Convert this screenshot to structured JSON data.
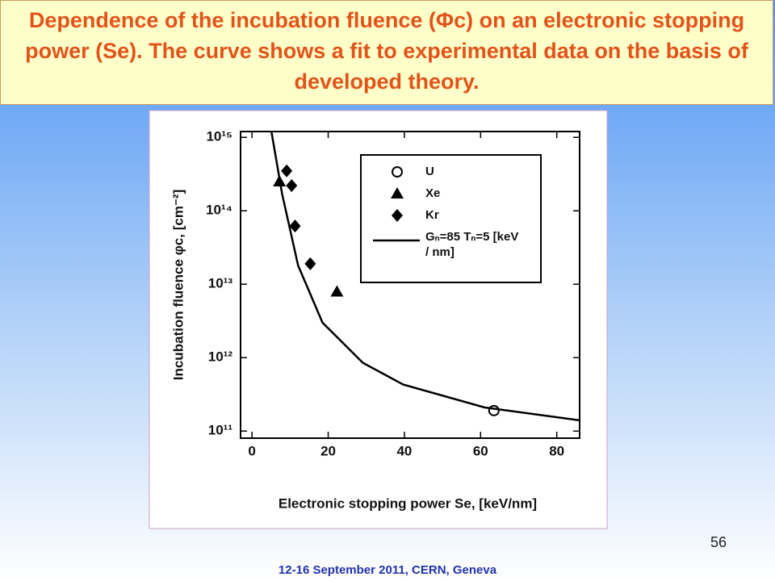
{
  "slide": {
    "title": "Dependence of the incubation fluence (Φc) on an electronic stopping power (Se). The curve shows a fit to experimental data on the basis of developed theory.",
    "page_number": "56",
    "footer": "12-16  September 2011, CERN, Geneva"
  },
  "chart_data": {
    "type": "scatter",
    "x_label": "Electronic stopping power  Se, [keV/nm]",
    "y_label": "Incubation fluence  φc, [cm⁻²]",
    "xlim": [
      -3,
      86
    ],
    "xticks": [
      0,
      20,
      40,
      60,
      80
    ],
    "yscale": "log",
    "ylim": [
      80000000000,
      1200000000000000
    ],
    "yticks": [
      {
        "value": 100000000000,
        "label": "10¹¹"
      },
      {
        "value": 1000000000000,
        "label": "10¹²"
      },
      {
        "value": 10000000000000,
        "label": "10¹³"
      },
      {
        "value": 100000000000000,
        "label": "10¹⁴"
      },
      {
        "value": 1000000000000000,
        "label": "10¹⁵"
      }
    ],
    "legend": "upper right",
    "series": [
      {
        "name": "U",
        "color": "#000000",
        "marker": "open-circle",
        "x": [
          63.5
        ],
        "values": [
          190000000000
        ]
      },
      {
        "name": "Xe",
        "color": "#000000",
        "marker": "triangle",
        "x": [
          7.2,
          22.3
        ],
        "values": [
          250000000000000,
          7900000000000
        ]
      },
      {
        "name": "Kr",
        "color": "#000000",
        "marker": "diamond",
        "x": [
          9.1,
          10.4,
          11.3,
          15.3
        ],
        "values": [
          350000000000000,
          220000000000000,
          62000000000000,
          19000000000000
        ]
      },
      {
        "name": "Gₙ=85  Tₙ=5 [keV / nm]",
        "color": "#000000",
        "marker": "line",
        "x": [
          5.1,
          7.9,
          12.1,
          18.5,
          29.1,
          39.7,
          61,
          86
        ],
        "values": [
          1200000000000000,
          170000000000000,
          18000000000000,
          3000000000000,
          850000000000,
          430000000000,
          210000000000,
          140000000000
        ]
      }
    ]
  }
}
